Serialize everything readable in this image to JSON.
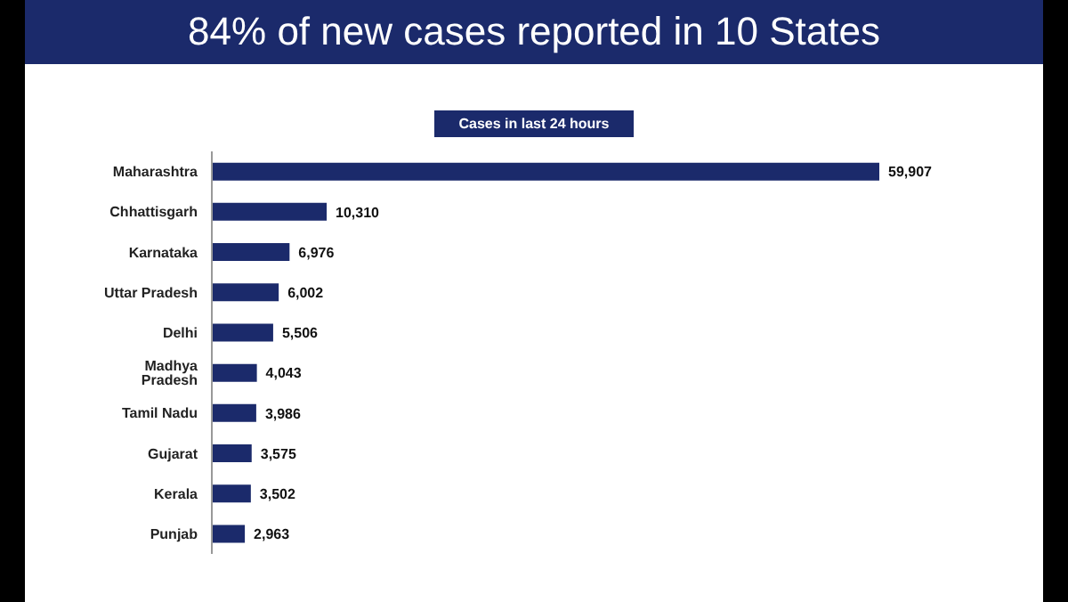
{
  "chart_data": {
    "type": "bar",
    "orientation": "horizontal",
    "title": "84% of new cases reported in 10 States",
    "subtitle": "Cases in last 24 hours",
    "categories": [
      "Maharashtra",
      "Chhattisgarh",
      "Karnataka",
      "Uttar Pradesh",
      "Delhi",
      "Madhya Pradesh",
      "Tamil Nadu",
      "Gujarat",
      "Kerala",
      "Punjab"
    ],
    "values": [
      59907,
      10310,
      6976,
      6002,
      5506,
      4043,
      3986,
      3575,
      3502,
      2963
    ],
    "value_labels": [
      "59,907",
      "10,310",
      "6,976",
      "6,002",
      "5,506",
      "4,043",
      "3,986",
      "3,575",
      "3,502",
      "2,963"
    ],
    "color": "#1b2a6b"
  }
}
